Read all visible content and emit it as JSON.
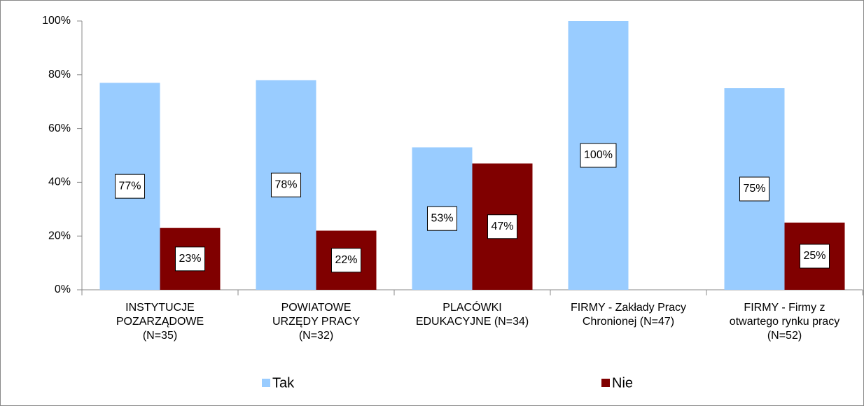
{
  "chart_data": {
    "type": "bar",
    "categories": [
      "INSTYTUCJE\nPOZARZĄDOWE\n(N=35)",
      "POWIATOWE\nURZĘDY PRACY\n(N=32)",
      "PLACÓWKI\nEDUKACYJNE (N=34)",
      "FIRMY - Zakłady Pracy\nChronionej (N=47)",
      "FIRMY - Firmy z\notwartego rynku pracy\n(N=52)"
    ],
    "series": [
      {
        "name": "Tak",
        "color": "#99ccff",
        "values": [
          77,
          78,
          53,
          100,
          75
        ],
        "value_labels": [
          "77%",
          "78%",
          "53%",
          "100%",
          "75%"
        ]
      },
      {
        "name": "Nie",
        "color": "#800000",
        "values": [
          23,
          22,
          47,
          null,
          25
        ],
        "value_labels": [
          "23%",
          "22%",
          "47%",
          null,
          "25%"
        ]
      }
    ],
    "ylim": [
      0,
      100
    ],
    "yticks": [
      {
        "value": 0,
        "label": "0%"
      },
      {
        "value": 20,
        "label": "20%"
      },
      {
        "value": 40,
        "label": "40%"
      },
      {
        "value": 60,
        "label": "60%"
      },
      {
        "value": 80,
        "label": "80%"
      },
      {
        "value": 100,
        "label": "100%"
      }
    ],
    "grid": false,
    "legend": "bottom"
  }
}
